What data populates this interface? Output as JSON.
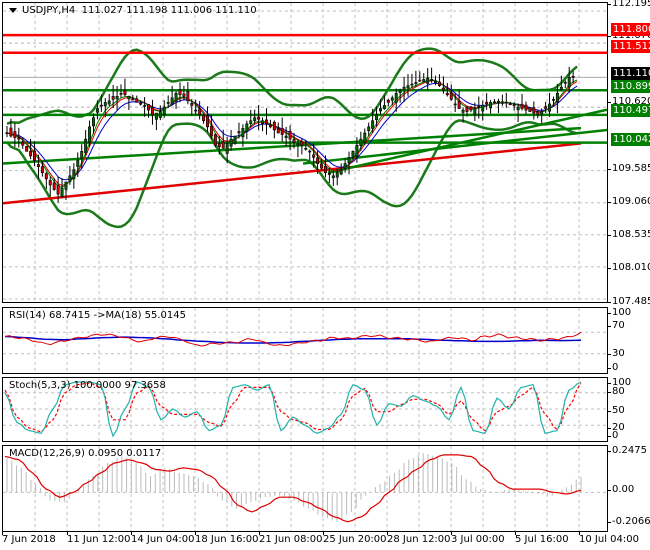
{
  "header": {
    "symbol": "USDJPY,H4",
    "ohlc": "111.027 111.198 111.006 111.110"
  },
  "colors": {
    "bull": "#006400",
    "bear": "#cc0000",
    "resistance": "#ff0000",
    "support": "#008000",
    "bollinger": "#1a7a1a",
    "ma_long": "#e00000",
    "ma_fast_red": "#e00000",
    "ma_fast_blue": "#0000cc",
    "ma_fast_green": "#008000",
    "rsi": "#e00000",
    "rsi_ma": "#0000cc",
    "stoch_main": "#20b2aa",
    "stoch_signal": "#ff0000",
    "macd_hist": "#bbbbbb",
    "macd_signal": "#e00000",
    "grid": "#c0c0c0"
  },
  "main": {
    "price_axis": [
      "112.195",
      "111.670",
      "110.620",
      "109.585",
      "109.060",
      "108.535",
      "108.010",
      "107.485"
    ],
    "tags": [
      {
        "value": "111.800",
        "color": "#ff0000"
      },
      {
        "value": "111.512",
        "color": "#ff0000"
      },
      {
        "value": "111.110",
        "color": "#000000"
      },
      {
        "value": "110.899",
        "color": "#008000"
      },
      {
        "value": "110.497",
        "color": "#008000"
      },
      {
        "value": "110.042",
        "color": "#008000"
      }
    ]
  },
  "rsi": {
    "label": "RSI(14) 68.7415  ->MA(18) 55.0145",
    "axis": [
      "100",
      "70",
      "30",
      "0"
    ]
  },
  "stoch": {
    "label": "Stoch(5,3,3) 100.0000 97.3658",
    "axis": [
      "100",
      "80",
      "50",
      "20",
      "0"
    ]
  },
  "macd": {
    "label": "MACD(12,26,9) 0.0950 0.0117",
    "axis": [
      "0.2475",
      "0.00",
      "-0.2066"
    ]
  },
  "time_axis": [
    "7 Jun 2018",
    "11 Jun 12:00",
    "14 Jun 04:00",
    "18 Jun 16:00",
    "21 Jun 08:00",
    "25 Jun 20:00",
    "28 Jun 12:00",
    "3 Jul 00:00",
    "5 Jul 16:00",
    "10 Jul 04:00"
  ],
  "chart_data": [
    {
      "type": "candlestick",
      "title": "USDJPY,H4",
      "ohlc_last": {
        "open": 111.027,
        "high": 111.198,
        "low": 111.006,
        "close": 111.11
      },
      "ylim": [
        107.485,
        112.195
      ],
      "y_ticks": [
        112.195,
        111.67,
        110.62,
        109.585,
        109.06,
        108.535,
        108.01,
        107.485
      ],
      "x_ticks": [
        "7 Jun 2018",
        "11 Jun 12:00",
        "14 Jun 04:00",
        "18 Jun 16:00",
        "21 Jun 08:00",
        "25 Jun 20:00",
        "28 Jun 12:00",
        "3 Jul 00:00",
        "5 Jul 16:00",
        "10 Jul 04:00"
      ],
      "horizontal_levels": [
        {
          "value": 111.8,
          "color": "red",
          "role": "resistance"
        },
        {
          "value": 111.512,
          "color": "red",
          "role": "resistance"
        },
        {
          "value": 110.899,
          "color": "green",
          "role": "support"
        },
        {
          "value": 110.497,
          "color": "green",
          "role": "support"
        },
        {
          "value": 110.042,
          "color": "green",
          "role": "support"
        }
      ],
      "current_price": 111.11,
      "close_series_approx": [
        110.25,
        110.15,
        110.1,
        109.9,
        109.75,
        109.55,
        109.35,
        109.2,
        109.4,
        109.6,
        109.9,
        110.3,
        110.6,
        110.7,
        110.75,
        110.85,
        110.8,
        110.7,
        110.65,
        110.5,
        110.55,
        110.7,
        110.85,
        110.8,
        110.65,
        110.5,
        110.3,
        110.0,
        109.95,
        110.1,
        110.2,
        110.35,
        110.45,
        110.4,
        110.3,
        110.2,
        110.15,
        110.05,
        110.0,
        109.9,
        109.7,
        109.55,
        109.5,
        109.6,
        109.8,
        110.0,
        110.2,
        110.4,
        110.6,
        110.7,
        110.85,
        110.95,
        111.0,
        111.05,
        111.1,
        111.05,
        110.9,
        110.75,
        110.6,
        110.55,
        110.6,
        110.65,
        110.7,
        110.72,
        110.7,
        110.65,
        110.6,
        110.55,
        110.5,
        110.6,
        110.75,
        110.95,
        111.11
      ],
      "overlays": [
        "Bollinger Bands (green)",
        "Moving Average 200 (red)",
        "Moving Average (green trend)",
        "Fast MAs (red, blue, green)",
        "Trendlines (green)"
      ]
    },
    {
      "type": "line",
      "title": "RSI(14) 68.7415 ->MA(18) 55.0145",
      "ylim": [
        0,
        100
      ],
      "y_ticks": [
        100,
        70,
        30,
        0
      ],
      "series": [
        {
          "name": "RSI(14)",
          "last": 68.7415,
          "values": [
            62,
            60,
            55,
            48,
            52,
            58,
            62,
            66,
            64,
            58,
            52,
            60,
            62,
            55,
            45,
            48,
            50,
            52,
            58,
            50,
            45,
            48,
            52,
            55,
            60,
            58,
            62,
            64,
            60,
            58,
            56,
            52,
            58,
            60,
            55,
            62,
            65,
            60,
            58,
            55,
            57,
            60,
            68.7
          ]
        },
        {
          "name": "MA(18)",
          "last": 55.0145,
          "values": [
            62,
            60,
            57,
            56,
            58,
            60,
            61,
            60,
            58,
            55,
            53,
            51,
            50,
            50,
            51,
            53,
            55,
            57,
            58,
            58,
            58,
            57,
            55,
            54,
            53,
            53,
            54,
            55,
            54.5,
            55.0
          ]
        }
      ]
    },
    {
      "type": "line",
      "title": "Stoch(5,3,3) 100.0000 97.3658",
      "ylim": [
        0,
        100
      ],
      "y_ticks": [
        100,
        80,
        50,
        20,
        0
      ],
      "series": [
        {
          "name": "%K",
          "last": 100.0,
          "values": [
            80,
            25,
            10,
            5,
            50,
            95,
            100,
            100,
            95,
            0,
            50,
            100,
            90,
            30,
            50,
            35,
            45,
            10,
            20,
            90,
            95,
            85,
            95,
            10,
            35,
            20,
            5,
            15,
            40,
            95,
            85,
            20,
            60,
            55,
            75,
            65,
            55,
            30,
            90,
            10,
            5,
            70,
            50,
            90,
            95,
            5,
            10,
            85,
            100
          ]
        },
        {
          "name": "%D",
          "last": 97.3658,
          "values": [
            85,
            35,
            15,
            8,
            30,
            80,
            95,
            98,
            90,
            30,
            30,
            80,
            92,
            55,
            40,
            40,
            40,
            25,
            18,
            60,
            90,
            90,
            90,
            45,
            30,
            25,
            12,
            12,
            30,
            75,
            88,
            45,
            45,
            58,
            68,
            68,
            60,
            40,
            65,
            30,
            10,
            45,
            55,
            75,
            90,
            40,
            12,
            55,
            97.4
          ]
        }
      ]
    },
    {
      "type": "bar+line",
      "title": "MACD(12,26,9) 0.0950 0.0117",
      "ylim": [
        -0.2066,
        0.2475
      ],
      "y_ticks": [
        0.2475,
        0.0,
        -0.2066
      ],
      "series": [
        {
          "name": "MACD histogram",
          "last": 0.095,
          "values": [
            0.21,
            0.15,
            0.05,
            -0.05,
            -0.06,
            0.02,
            0.1,
            0.18,
            0.22,
            0.18,
            0.1,
            0.15,
            0.12,
            0.1,
            0.05,
            -0.05,
            -0.1,
            -0.06,
            -0.03,
            -0.02,
            -0.05,
            -0.1,
            -0.15,
            -0.18,
            -0.12,
            -0.02,
            0.05,
            0.12,
            0.2,
            0.24,
            0.22,
            0.18,
            0.08,
            0.02,
            0.0,
            0.02,
            0.01,
            -0.01,
            -0.02,
            0.03,
            0.095
          ]
        },
        {
          "name": "Signal",
          "last": 0.0117,
          "values": [
            0.22,
            0.2,
            0.12,
            0.02,
            -0.03,
            0.0,
            0.06,
            0.12,
            0.18,
            0.2,
            0.18,
            0.14,
            0.13,
            0.15,
            0.14,
            0.1,
            0.02,
            -0.08,
            -0.12,
            -0.08,
            -0.03,
            -0.03,
            -0.06,
            -0.1,
            -0.15,
            -0.18,
            -0.15,
            -0.08,
            0.0,
            0.08,
            0.14,
            0.2,
            0.23,
            0.23,
            0.22,
            0.15,
            0.06,
            0.02,
            0.02,
            0.02,
            0.0,
            -0.01,
            0.0117
          ]
        }
      ]
    }
  ]
}
